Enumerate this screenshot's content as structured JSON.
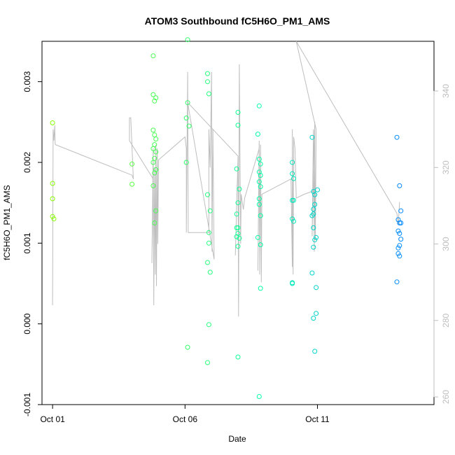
{
  "chart_data": {
    "type": "scatter",
    "title": "ATOM3 Southbound fC5H6O_PM1_AMS",
    "xlabel": "Date",
    "ylabel": "fC5H6O_PM1_AMS",
    "x_ticks": [
      "Oct 01",
      "Oct 06",
      "Oct 11"
    ],
    "x_tick_days": [
      1,
      6,
      11
    ],
    "xlim": [
      0.6,
      15.4
    ],
    "ylim": [
      -0.001,
      0.0035
    ],
    "y_ticks": [
      "-0.001",
      "0.000",
      "0.001",
      "0.002",
      "0.003"
    ],
    "y_tick_values": [
      -0.001,
      0,
      0.001,
      0.002,
      0.003
    ],
    "y2lim": [
      258,
      353
    ],
    "y2_ticks": [
      "260",
      "280",
      "300",
      "320",
      "340"
    ],
    "y2_tick_values": [
      260,
      280,
      300,
      320,
      340
    ],
    "grid": false,
    "colors": {
      "line": "#bebebe",
      "point_early": "#88ff00",
      "point_mid": "#00ffaa",
      "point_late": "#0088ff",
      "right_axis": "#bebebe"
    },
    "points": [
      [
        1.0,
        0.00249
      ],
      [
        1.0,
        0.00174
      ],
      [
        1.0,
        0.00155
      ],
      [
        1.0,
        0.00133
      ],
      [
        1.05,
        0.0013
      ],
      [
        4.0,
        0.00198
      ],
      [
        4.0,
        0.00173
      ],
      [
        4.8,
        0.00332
      ],
      [
        4.8,
        0.00284
      ],
      [
        4.85,
        0.00276
      ],
      [
        4.9,
        0.0028
      ],
      [
        4.8,
        0.0024
      ],
      [
        4.85,
        0.00234
      ],
      [
        4.9,
        0.00229
      ],
      [
        4.85,
        0.00222
      ],
      [
        4.8,
        0.00217
      ],
      [
        4.9,
        0.00213
      ],
      [
        4.85,
        0.00205
      ],
      [
        4.8,
        0.002
      ],
      [
        4.9,
        0.00191
      ],
      [
        4.85,
        0.00187
      ],
      [
        4.8,
        0.00171
      ],
      [
        4.9,
        0.0014
      ],
      [
        4.85,
        0.00125
      ],
      [
        6.1,
        0.00352
      ],
      [
        6.1,
        0.00274
      ],
      [
        6.05,
        0.00255
      ],
      [
        6.15,
        0.00245
      ],
      [
        6.05,
        0.002
      ],
      [
        6.1,
        -0.00029
      ],
      [
        6.85,
        0.0031
      ],
      [
        6.85,
        0.003
      ],
      [
        6.9,
        0.00285
      ],
      [
        6.85,
        0.0016
      ],
      [
        6.95,
        0.0014
      ],
      [
        6.9,
        0.00113
      ],
      [
        6.9,
        0.001
      ],
      [
        6.85,
        0.00076
      ],
      [
        6.95,
        0.00064
      ],
      [
        6.9,
        -1e-05
      ],
      [
        6.85,
        -0.00048
      ],
      [
        8.0,
        0.00262
      ],
      [
        8.0,
        0.00246
      ],
      [
        7.95,
        0.00192
      ],
      [
        8.05,
        0.00167
      ],
      [
        8.0,
        0.0015
      ],
      [
        7.95,
        0.00136
      ],
      [
        8.0,
        0.00119
      ],
      [
        7.95,
        0.00119
      ],
      [
        8.0,
        0.00112
      ],
      [
        7.95,
        0.00108
      ],
      [
        8.05,
        0.00106
      ],
      [
        8.0,
        0.00096
      ],
      [
        8.0,
        -0.00041
      ],
      [
        8.75,
        0.00235
      ],
      [
        8.8,
        0.0027
      ],
      [
        8.8,
        0.00204
      ],
      [
        8.85,
        0.00198
      ],
      [
        8.8,
        0.00188
      ],
      [
        8.85,
        0.00184
      ],
      [
        8.8,
        0.00176
      ],
      [
        8.85,
        0.0017
      ],
      [
        8.8,
        0.00155
      ],
      [
        8.8,
        0.00148
      ],
      [
        8.85,
        0.00134
      ],
      [
        8.75,
        0.00107
      ],
      [
        8.85,
        0.00098
      ],
      [
        8.85,
        0.00044
      ],
      [
        8.8,
        -0.0009
      ],
      [
        10.05,
        0.002
      ],
      [
        10.05,
        0.00186
      ],
      [
        10.1,
        0.0018
      ],
      [
        10.05,
        0.00153
      ],
      [
        10.1,
        0.00153
      ],
      [
        10.05,
        0.0013
      ],
      [
        10.1,
        0.00127
      ],
      [
        10.05,
        0.0005
      ],
      [
        10.05,
        0.00051
      ],
      [
        10.8,
        0.00231
      ],
      [
        10.85,
        0.00164
      ],
      [
        10.9,
        0.0016
      ],
      [
        10.9,
        0.00148
      ],
      [
        10.85,
        0.00142
      ],
      [
        10.85,
        0.00136
      ],
      [
        10.8,
        0.00134
      ],
      [
        10.85,
        0.00119
      ],
      [
        10.95,
        0.00107
      ],
      [
        10.9,
        0.00104
      ],
      [
        10.85,
        0.00095
      ],
      [
        10.8,
        0.00063
      ],
      [
        10.95,
        0.00045
      ],
      [
        10.95,
        0.00013
      ],
      [
        10.85,
        7e-05
      ],
      [
        10.9,
        -0.00034
      ],
      [
        11.0,
        0.00166
      ],
      [
        14.0,
        0.00231
      ],
      [
        14.1,
        0.00171
      ],
      [
        14.15,
        0.0014
      ],
      [
        14.05,
        0.00129
      ],
      [
        14.1,
        0.00125
      ],
      [
        14.15,
        0.00125
      ],
      [
        14.05,
        0.00115
      ],
      [
        14.1,
        0.00112
      ],
      [
        14.15,
        0.00105
      ],
      [
        14.1,
        0.00097
      ],
      [
        14.05,
        0.00094
      ],
      [
        14.05,
        0.00087
      ],
      [
        14.1,
        0.00084
      ],
      [
        14.0,
        0.00052
      ]
    ],
    "line": [
      [
        1.0,
        284
      ],
      [
        1.02,
        330
      ],
      [
        1.05,
        327
      ],
      [
        1.08,
        331
      ],
      [
        1.1,
        326
      ],
      [
        4.0,
        318
      ],
      [
        4.05,
        317
      ],
      [
        3.95,
        333
      ],
      [
        3.9,
        333
      ],
      [
        3.9,
        327
      ],
      [
        4.8,
        317
      ],
      [
        4.75,
        295
      ],
      [
        4.8,
        325
      ],
      [
        4.82,
        284
      ],
      [
        4.85,
        320
      ],
      [
        4.88,
        292
      ],
      [
        4.9,
        326
      ],
      [
        4.92,
        289
      ],
      [
        4.95,
        325
      ],
      [
        4.97,
        300
      ],
      [
        5.0,
        322
      ],
      [
        6.0,
        328
      ],
      [
        6.05,
        325
      ],
      [
        6.05,
        303
      ],
      [
        6.1,
        345
      ],
      [
        6.12,
        303
      ],
      [
        6.9,
        303
      ],
      [
        6.9,
        330
      ],
      [
        6.95,
        320
      ],
      [
        7.0,
        345
      ],
      [
        7.02,
        298
      ],
      [
        7.05,
        330
      ],
      [
        7.1,
        296
      ],
      [
        6.1,
        337
      ],
      [
        8.0,
        323
      ],
      [
        7.9,
        297
      ],
      [
        8.0,
        323
      ],
      [
        8.02,
        281
      ],
      [
        8.05,
        347
      ],
      [
        8.1,
        300
      ],
      [
        8.12,
        313
      ],
      [
        8.2,
        309
      ],
      [
        8.25,
        312
      ],
      [
        8.8,
        325
      ],
      [
        8.75,
        293
      ],
      [
        8.8,
        327
      ],
      [
        8.82,
        292
      ],
      [
        8.85,
        326
      ],
      [
        8.88,
        290
      ],
      [
        8.9,
        313
      ],
      [
        10.0,
        317
      ],
      [
        10.05,
        294
      ],
      [
        10.05,
        330
      ],
      [
        10.08,
        292
      ],
      [
        10.1,
        328
      ],
      [
        10.15,
        325
      ],
      [
        10.2,
        312
      ],
      [
        10.5,
        313
      ],
      [
        10.9,
        314
      ],
      [
        10.9,
        332
      ],
      [
        10.8,
        302
      ],
      [
        10.85,
        330
      ],
      [
        10.88,
        298
      ],
      [
        10.9,
        325
      ],
      [
        10.92,
        301
      ],
      [
        10.95,
        330
      ],
      [
        10.2,
        353
      ],
      [
        14.0,
        308
      ],
      [
        14.05,
        305
      ],
      [
        14.1,
        311
      ]
    ]
  }
}
